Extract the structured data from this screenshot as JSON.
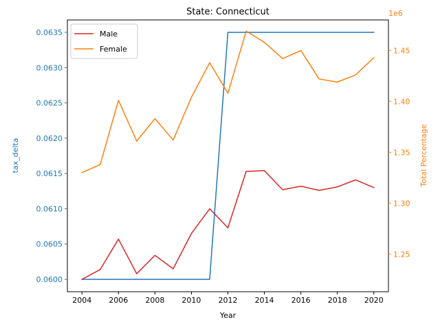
{
  "chart_data": {
    "type": "line",
    "title": "State: Connecticut",
    "xlabel": "Year",
    "ylabel_left": "tax_delta",
    "ylabel_right": "Total Percentage",
    "right_offset_label": "1e6",
    "x": [
      2004,
      2005,
      2006,
      2007,
      2008,
      2009,
      2010,
      2011,
      2012,
      2013,
      2014,
      2015,
      2016,
      2017,
      2018,
      2019,
      2020
    ],
    "x_ticks": [
      2004,
      2006,
      2008,
      2010,
      2012,
      2014,
      2016,
      2018,
      2020
    ],
    "x_tick_labels": [
      "2004",
      "2006",
      "2008",
      "2010",
      "2012",
      "2014",
      "2016",
      "2018",
      "2020"
    ],
    "xlim": [
      2003.2,
      2020.8
    ],
    "left_axis": {
      "ylim": [
        0.059825,
        0.063675
      ],
      "ticks": [
        0.06,
        0.0605,
        0.061,
        0.0615,
        0.062,
        0.0625,
        0.063,
        0.0635
      ],
      "tick_labels": [
        "0.0600",
        "0.0605",
        "0.0610",
        "0.0615",
        "0.0620",
        "0.0625",
        "0.0630",
        "0.0635"
      ],
      "series": [
        {
          "key": "tax_delta",
          "color": "#1f77b4",
          "values": [
            0.06,
            0.06,
            0.06,
            0.06,
            0.06,
            0.06,
            0.06,
            0.06,
            0.0635,
            0.0635,
            0.0635,
            0.0635,
            0.0635,
            0.0635,
            0.0635,
            0.0635,
            0.0635
          ]
        },
        {
          "name": "Male",
          "color": "#d62728",
          "values": [
            0.06,
            0.06014,
            0.06057,
            0.06008,
            0.06034,
            0.06015,
            0.06065,
            0.061,
            0.06073,
            0.06153,
            0.06154,
            0.06127,
            0.06132,
            0.06126,
            0.06131,
            0.06141,
            0.0613
          ]
        }
      ]
    },
    "right_axis": {
      "ylim": [
        1.213,
        1.48
      ],
      "ticks": [
        1.25,
        1.3,
        1.35,
        1.4,
        1.45
      ],
      "tick_labels": [
        "1.25",
        "1.30",
        "1.35",
        "1.40",
        "1.45"
      ],
      "series": [
        {
          "name": "Female",
          "color": "#ff7f0e",
          "values": [
            1.33,
            1.338,
            1.401,
            1.361,
            1.383,
            1.362,
            1.404,
            1.438,
            1.408,
            1.469,
            1.458,
            1.442,
            1.45,
            1.422,
            1.419,
            1.426,
            1.443
          ]
        }
      ]
    },
    "legend": {
      "placement": "upper-left",
      "entries": [
        {
          "name": "Male",
          "color": "#d62728"
        },
        {
          "name": "Female",
          "color": "#ff7f0e"
        }
      ]
    },
    "grid": false
  }
}
